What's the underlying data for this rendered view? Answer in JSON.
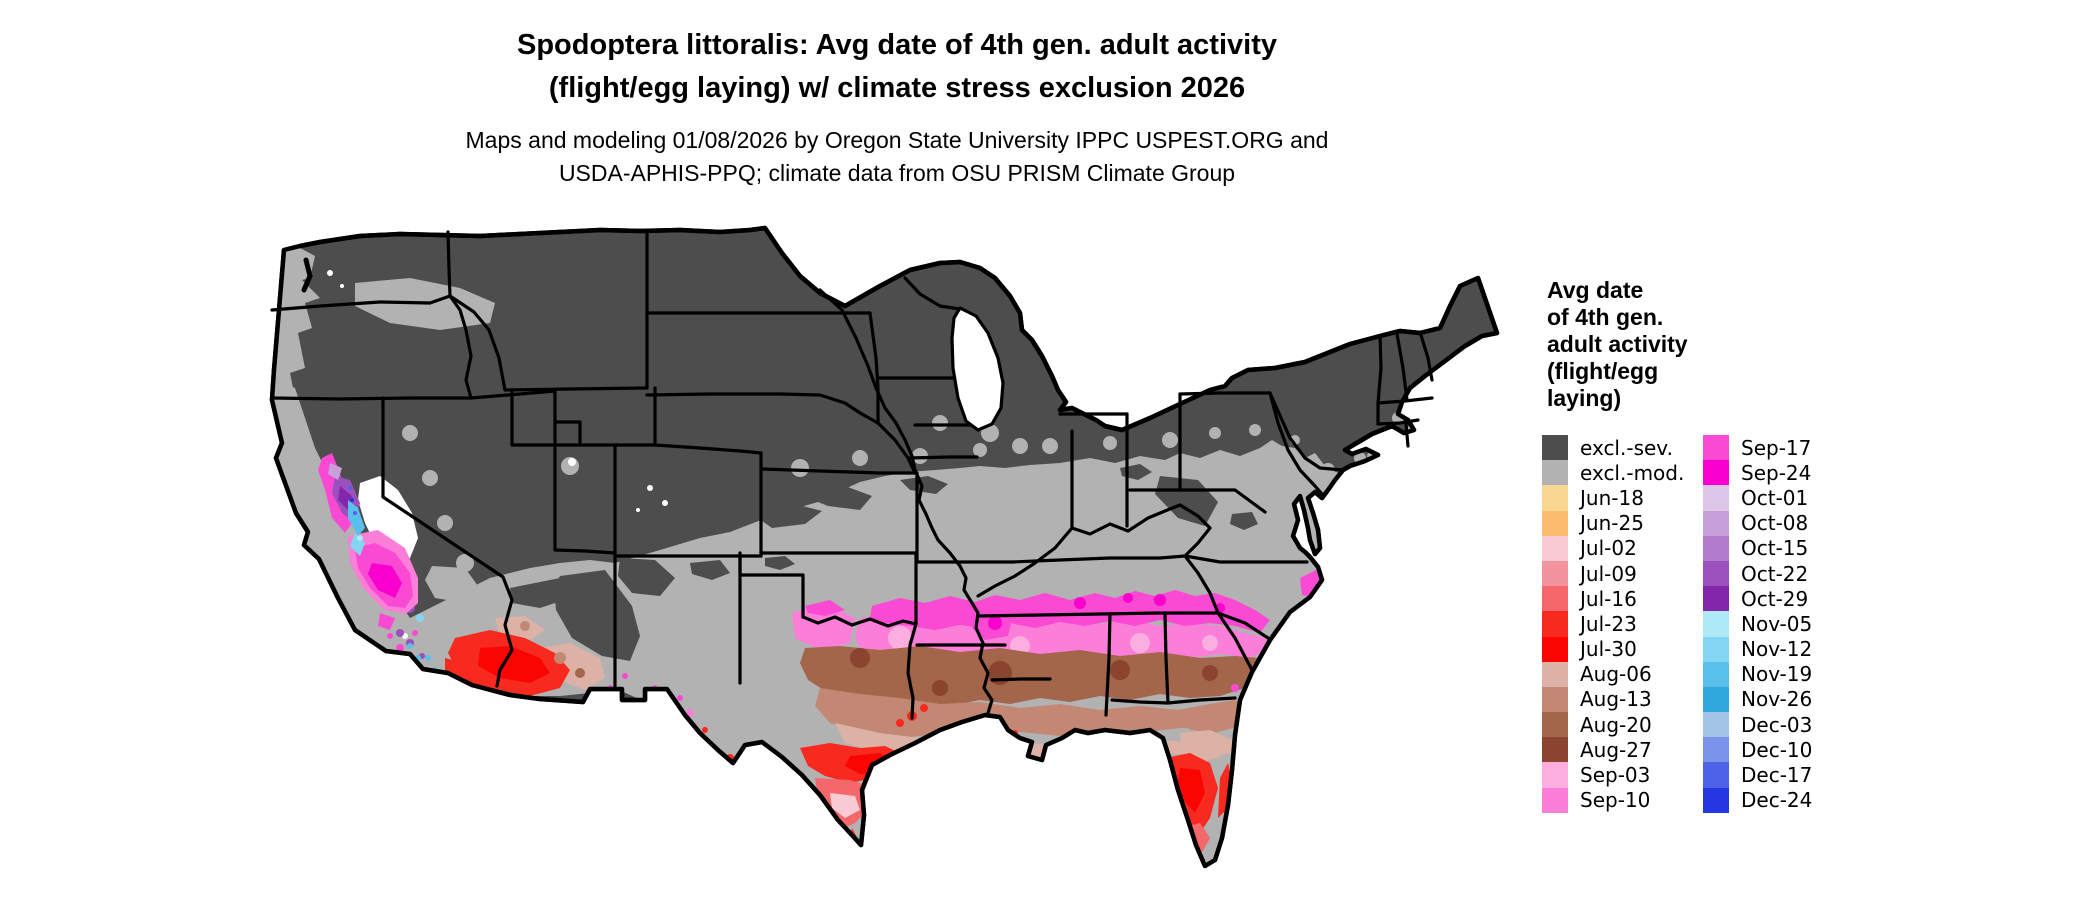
{
  "title": {
    "line1": "Spodoptera littoralis: Avg date of 4th gen. adult activity",
    "line2": "(flight/egg laying) w/ climate stress exclusion 2026"
  },
  "subtitle": {
    "line1": "Maps and modeling 01/08/2026 by Oregon State University IPPC USPEST.ORG and",
    "line2": "USDA-APHIS-PPQ; climate data from OSU PRISM Climate Group"
  },
  "legend": {
    "title_lines": [
      "Avg date",
      "of 4th gen.",
      "adult activity",
      "(flight/egg",
      "laying)"
    ],
    "columns": [
      [
        {
          "key": "excl-sev",
          "label": "excl.-sev.",
          "color": "#4D4D4D"
        },
        {
          "key": "excl-mod",
          "label": "excl.-mod.",
          "color": "#B2B2B2"
        },
        {
          "key": "jun-18",
          "label": "Jun-18",
          "color": "#FAD791"
        },
        {
          "key": "jun-25",
          "label": "Jun-25",
          "color": "#FABD70"
        },
        {
          "key": "jul-02",
          "label": "Jul-02",
          "color": "#F8CBD5"
        },
        {
          "key": "jul-09",
          "label": "Jul-09",
          "color": "#F0939D"
        },
        {
          "key": "jul-16",
          "label": "Jul-16",
          "color": "#F4676B"
        },
        {
          "key": "jul-23",
          "label": "Jul-23",
          "color": "#F8291F"
        },
        {
          "key": "jul-30",
          "label": "Jul-30",
          "color": "#FB0503"
        },
        {
          "key": "aug-06",
          "label": "Aug-06",
          "color": "#DCB2A7"
        },
        {
          "key": "aug-13",
          "label": "Aug-13",
          "color": "#C28874"
        },
        {
          "key": "aug-20",
          "label": "Aug-20",
          "color": "#A3664B"
        },
        {
          "key": "aug-27",
          "label": "Aug-27",
          "color": "#8A4430"
        },
        {
          "key": "sep-03",
          "label": "Sep-03",
          "color": "#FBAEDF"
        },
        {
          "key": "sep-10",
          "label": "Sep-10",
          "color": "#FB7ED9"
        }
      ],
      [
        {
          "key": "sep-17",
          "label": "Sep-17",
          "color": "#FA4AD4"
        },
        {
          "key": "sep-24",
          "label": "Sep-24",
          "color": "#F900CF"
        },
        {
          "key": "oct-01",
          "label": "Oct-01",
          "color": "#DCC7E8"
        },
        {
          "key": "oct-08",
          "label": "Oct-08",
          "color": "#C7A0DA"
        },
        {
          "key": "oct-15",
          "label": "Oct-15",
          "color": "#B17ACB"
        },
        {
          "key": "oct-22",
          "label": "Oct-22",
          "color": "#9A50BD"
        },
        {
          "key": "oct-29",
          "label": "Oct-29",
          "color": "#8426AC"
        },
        {
          "key": "nov-05",
          "label": "Nov-05",
          "color": "#AFEAF9"
        },
        {
          "key": "nov-12",
          "label": "Nov-12",
          "color": "#83D6F2"
        },
        {
          "key": "nov-19",
          "label": "Nov-19",
          "color": "#58C0EA"
        },
        {
          "key": "nov-26",
          "label": "Nov-26",
          "color": "#2FA7DC"
        },
        {
          "key": "dec-03",
          "label": "Dec-03",
          "color": "#A2C4E6"
        },
        {
          "key": "dec-10",
          "label": "Dec-10",
          "color": "#7B93EA"
        },
        {
          "key": "dec-17",
          "label": "Dec-17",
          "color": "#4D62E8"
        },
        {
          "key": "dec-24",
          "label": "Dec-24",
          "color": "#2537E3"
        }
      ]
    ]
  },
  "map": {
    "region": "Contiguous United States",
    "base_excluded_severe_color": "#4D4D4D",
    "base_excluded_moderate_color": "#B2B2B2",
    "background_color": "#FFFFFF"
  }
}
